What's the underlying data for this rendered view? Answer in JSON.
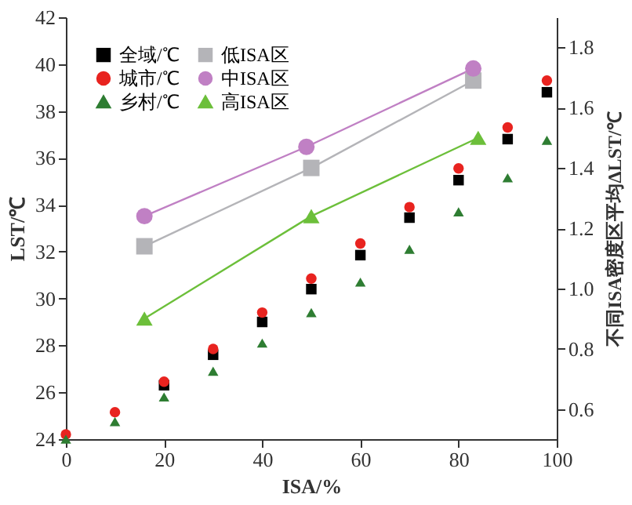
{
  "chart_data": {
    "type": "scatter",
    "xlabel": "ISA/%",
    "ylabel": "LST/℃",
    "y2label": "不同ISA密度区平均ΔLST/℃",
    "xlim": [
      0,
      100
    ],
    "xticks": [
      0,
      20,
      40,
      60,
      80,
      100
    ],
    "ylim": [
      24,
      42
    ],
    "yticks": [
      24,
      26,
      28,
      30,
      32,
      34,
      36,
      38,
      40,
      42
    ],
    "y2lim": [
      0.5,
      1.9
    ],
    "y2ticks": [
      {
        "value": 0.6,
        "label": "0.6"
      },
      {
        "value": 0.8,
        "label": "0.8"
      },
      {
        "value": 1.0,
        "label": "1.0"
      },
      {
        "value": 1.2,
        "label": "1.2"
      },
      {
        "value": 1.4,
        "label": "1.4"
      },
      {
        "value": 1.6,
        "label": "1.6"
      },
      {
        "value": 1.8,
        "label": "1.8"
      }
    ],
    "grid": false,
    "legend": "top left",
    "series": [
      {
        "name": "全域/℃",
        "color": "#000000",
        "marker": "square",
        "x": [
          20,
          30,
          40,
          50,
          60,
          70,
          80,
          90,
          98
        ],
        "values": [
          26.3,
          27.6,
          29.0,
          30.4,
          31.85,
          33.45,
          35.05,
          36.8,
          38.8
        ]
      },
      {
        "name": "城市/℃",
        "color": "#e8231f",
        "marker": "circle",
        "x": [
          0,
          10,
          20,
          30,
          40,
          50,
          60,
          70,
          80,
          90,
          98
        ],
        "values": [
          24.2,
          25.15,
          26.45,
          27.85,
          29.4,
          30.85,
          32.35,
          33.9,
          35.55,
          37.3,
          39.3
        ]
      },
      {
        "name": "乡村/℃",
        "color": "#2e7d32",
        "marker": "triangle",
        "x": [
          0,
          10,
          20,
          30,
          40,
          50,
          60,
          70,
          80,
          90,
          98
        ],
        "values": [
          24.0,
          24.75,
          25.8,
          26.9,
          28.1,
          29.4,
          30.7,
          32.1,
          33.7,
          35.15,
          36.75
        ]
      },
      {
        "name": "低ISA区",
        "color": "#b4b4b8",
        "marker": "square",
        "type": "line",
        "axis": "y2",
        "x": [
          16,
          50,
          83
        ],
        "values": [
          1.14,
          1.4,
          1.69
        ]
      },
      {
        "name": "中ISA区",
        "color": "#c080c4",
        "marker": "circle",
        "type": "line",
        "axis": "y2",
        "x": [
          16,
          49,
          83
        ],
        "values": [
          1.24,
          1.47,
          1.73
        ]
      },
      {
        "name": "高ISA区",
        "color": "#6cbf3a",
        "marker": "triangle",
        "type": "line",
        "axis": "y2",
        "x": [
          16,
          50,
          84
        ],
        "values": [
          0.9,
          1.24,
          1.5
        ]
      }
    ]
  }
}
